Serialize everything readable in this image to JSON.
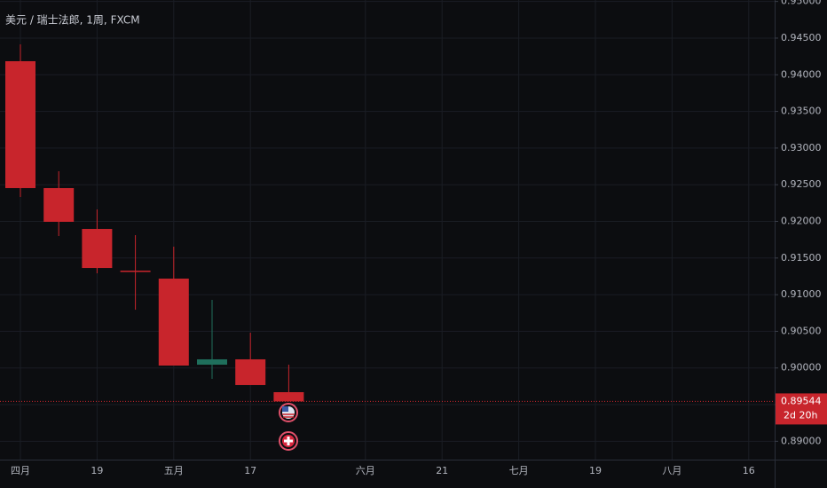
{
  "chart_data": {
    "type": "candlestick",
    "title": "美元 / 瑞士法郎, 1周, FXCM",
    "categories": [
      "四月",
      null,
      "19",
      null,
      "五月",
      null,
      "17",
      null,
      null,
      "六月",
      null,
      "21",
      null,
      "七月",
      null,
      "19",
      null,
      "八月",
      null,
      "16"
    ],
    "open": [
      0.94185,
      0.92454,
      0.91897,
      0.91328,
      0.91219,
      0.90045,
      0.90118,
      0.8967,
      null,
      null,
      null,
      null,
      null,
      null,
      null,
      null,
      null,
      null,
      null,
      null
    ],
    "high": [
      0.94415,
      0.92684,
      0.92163,
      0.91812,
      0.91655,
      0.90929,
      0.90481,
      0.90045,
      null,
      null,
      null,
      null,
      null,
      null,
      null,
      null,
      null,
      null,
      null,
      null
    ],
    "low": [
      0.92333,
      0.918,
      0.91292,
      0.90795,
      0.90033,
      0.89851,
      0.89767,
      0.89544,
      null,
      null,
      null,
      null,
      null,
      null,
      null,
      null,
      null,
      null,
      null,
      null
    ],
    "close": [
      0.92454,
      0.91994,
      0.91364,
      0.91316,
      0.90033,
      0.90118,
      0.89767,
      0.89544,
      null,
      null,
      null,
      null,
      null,
      null,
      null,
      null,
      null,
      null,
      null,
      null
    ],
    "up_color": "#1f6f5c",
    "down_color": "#c8252c",
    "last_price": 0.89544,
    "countdown": "2d 20h",
    "ylim": [
      0.8875,
      0.9502
    ],
    "yticks": [
      {
        "value": 0.89,
        "label": "0.89000"
      },
      {
        "value": 0.895,
        "label": "0.89500"
      },
      {
        "value": 0.9,
        "label": "0.90000"
      },
      {
        "value": 0.905,
        "label": "0.90500"
      },
      {
        "value": 0.91,
        "label": "0.91000"
      },
      {
        "value": 0.915,
        "label": "0.91500"
      },
      {
        "value": 0.92,
        "label": "0.92000"
      },
      {
        "value": 0.925,
        "label": "0.92500"
      },
      {
        "value": 0.93,
        "label": "0.93000"
      },
      {
        "value": 0.935,
        "label": "0.93500"
      },
      {
        "value": 0.94,
        "label": "0.94000"
      },
      {
        "value": 0.945,
        "label": "0.94500"
      },
      {
        "value": 0.95,
        "label": "0.95000"
      }
    ],
    "grid": true
  }
}
